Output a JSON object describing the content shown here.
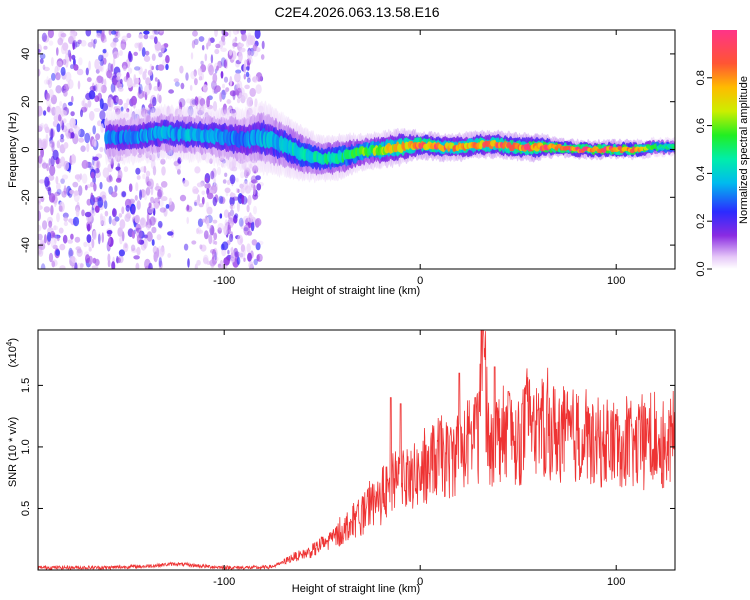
{
  "title": "C2E4.2026.063.13.58.E16",
  "chart_data": [
    {
      "type": "heatmap",
      "title": "C2E4.2026.063.13.58.E16",
      "xlabel": "Height of straight line (km)",
      "ylabel": "Frequency (Hz)",
      "xlim": [
        -195,
        130
      ],
      "ylim": [
        -50,
        50
      ],
      "xticks": [
        {
          "v": -100,
          "label": "-100"
        },
        {
          "v": 0,
          "label": "0"
        },
        {
          "v": 100,
          "label": "100"
        }
      ],
      "yticks": [
        {
          "v": -40,
          "label": "-40"
        },
        {
          "v": -20,
          "label": "-20"
        },
        {
          "v": 0,
          "label": "0"
        },
        {
          "v": 20,
          "label": "20"
        },
        {
          "v": 40,
          "label": "40"
        }
      ],
      "colorbar": {
        "label": "Normalized spectral amplitude",
        "range": [
          0,
          1
        ],
        "ticks": [
          {
            "v": 0.0,
            "label": "0.0"
          },
          {
            "v": 0.2,
            "label": "0.2"
          },
          {
            "v": 0.4,
            "label": "0.4"
          },
          {
            "v": 0.6,
            "label": "0.6"
          },
          {
            "v": 0.8,
            "label": "0.8"
          }
        ]
      },
      "ridge": {
        "description": "frequency centre line of signal energy",
        "x": [
          -150,
          -130,
          -110,
          -90,
          -80,
          -70,
          -60,
          -50,
          -40,
          -30,
          -20,
          -10,
          0,
          10,
          20,
          30,
          40,
          50,
          60,
          70,
          80,
          90,
          100,
          110,
          120,
          130
        ],
        "freq": [
          5,
          7,
          6,
          4,
          5,
          2,
          -2,
          -4,
          -3,
          -1,
          0,
          1,
          2,
          1,
          1,
          2,
          2,
          1,
          1,
          1,
          0,
          0,
          0,
          0,
          1,
          1
        ],
        "amplitude": [
          0.3,
          0.35,
          0.35,
          0.3,
          0.35,
          0.4,
          0.45,
          0.45,
          0.5,
          0.55,
          0.65,
          0.75,
          0.85,
          0.85,
          0.75,
          0.8,
          0.85,
          0.85,
          0.9,
          0.9,
          0.9,
          0.9,
          0.9,
          0.9,
          0.5,
          0.5
        ],
        "half_width": [
          6,
          6,
          6,
          7,
          8,
          7,
          6,
          5,
          5,
          4,
          4,
          4,
          3,
          3,
          3,
          3,
          3,
          3,
          3,
          2,
          2,
          2,
          2,
          2,
          2,
          2
        ]
      },
      "noise_region": {
        "x": [
          -195,
          -80
        ],
        "amplitude": 0.2,
        "gap_x": [
          -130,
          -115
        ]
      }
    },
    {
      "type": "line",
      "xlabel": "Height of straight line (km)",
      "ylabel": "SNR (10 * v/v)",
      "yscale_label": "(x10",
      "yscale_exponent": "4",
      "yscale_suffix": ")",
      "xlim": [
        -195,
        130
      ],
      "ylim": [
        0,
        1.95
      ],
      "color": "#ee3333",
      "xticks": [
        {
          "v": -100,
          "label": "-100"
        },
        {
          "v": 0,
          "label": "0"
        },
        {
          "v": 100,
          "label": "100"
        }
      ],
      "yticks": [
        {
          "v": 0.5,
          "label": "0.5"
        },
        {
          "v": 1.0,
          "label": "1.0"
        },
        {
          "v": 1.5,
          "label": "1.5"
        }
      ],
      "series": [
        {
          "name": "SNR",
          "x": [
            -195,
            -180,
            -160,
            -140,
            -125,
            -110,
            -100,
            -90,
            -80,
            -75,
            -70,
            -65,
            -60,
            -55,
            -50,
            -45,
            -40,
            -35,
            -30,
            -25,
            -20,
            -15,
            -12,
            -10,
            -5,
            0,
            5,
            10,
            15,
            20,
            25,
            30,
            32,
            35,
            40,
            45,
            50,
            55,
            60,
            65,
            70,
            75,
            80,
            85,
            90,
            95,
            100,
            105,
            110,
            115,
            120,
            125,
            130
          ],
          "y": [
            0.02,
            0.02,
            0.02,
            0.03,
            0.05,
            0.03,
            0.02,
            0.02,
            0.02,
            0.03,
            0.06,
            0.1,
            0.12,
            0.15,
            0.2,
            0.24,
            0.3,
            0.38,
            0.42,
            0.5,
            0.55,
            0.65,
            0.7,
            0.75,
            0.72,
            0.75,
            0.82,
            0.9,
            0.85,
            0.95,
            1.0,
            1.05,
            1.9,
            1.0,
            1.05,
            1.1,
            1.0,
            1.15,
            1.1,
            1.1,
            1.08,
            1.05,
            1.05,
            1.0,
            1.0,
            0.98,
            1.0,
            1.0,
            0.95,
            0.98,
            1.0,
            0.98,
            1.0
          ]
        }
      ],
      "peaks": [
        {
          "x": -15,
          "y": 1.4
        },
        {
          "x": -10,
          "y": 1.35
        },
        {
          "x": 20,
          "y": 1.6
        },
        {
          "x": 28,
          "y": 1.4
        },
        {
          "x": 32,
          "y": 1.95
        },
        {
          "x": 38,
          "y": 1.65
        },
        {
          "x": 45,
          "y": 1.45
        },
        {
          "x": 52,
          "y": 1.35
        },
        {
          "x": 60,
          "y": 1.3
        }
      ]
    }
  ]
}
